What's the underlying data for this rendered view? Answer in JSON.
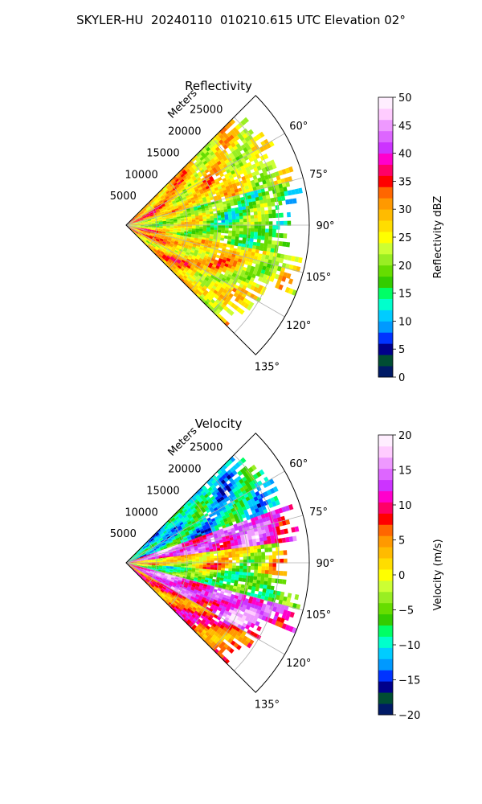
{
  "title": "SKYLER-HU  20240110  010210.615 UTC Elevation 02°",
  "chart_data": [
    {
      "type": "heatmap",
      "projection": "polar-sector",
      "title": "Reflectivity",
      "radial_label": "Meters",
      "radial_ticks": [
        5000,
        10000,
        15000,
        20000,
        25000
      ],
      "radial_tick_labels": [
        "5000",
        "10000",
        "15000",
        "20000",
        "25000"
      ],
      "theta_ticks_deg": [
        60,
        75,
        90,
        105,
        120,
        135
      ],
      "theta_tick_labels": [
        "60°",
        "75°",
        "90°",
        "105°",
        "120°",
        "135°"
      ],
      "theta_range_deg": [
        45,
        135
      ],
      "r_range_m": [
        0,
        30000
      ],
      "grid": true,
      "colorbar": {
        "label": "Reflectivity dBZ",
        "range": [
          0,
          50
        ],
        "ticks": [
          0,
          5,
          10,
          15,
          20,
          25,
          30,
          35,
          40,
          45,
          50
        ],
        "tick_labels": [
          "0",
          "5",
          "10",
          "15",
          "20",
          "25",
          "30",
          "35",
          "40",
          "45",
          "50"
        ],
        "colors": [
          "#001a66",
          "#004d33",
          "#00008b",
          "#0033ff",
          "#0099ff",
          "#00ccff",
          "#00ffcc",
          "#00ff66",
          "#33cc00",
          "#66dd00",
          "#99ee22",
          "#ccff33",
          "#ffff00",
          "#ffdd00",
          "#ffbb00",
          "#ff9900",
          "#ff6600",
          "#ff0000",
          "#ff0066",
          "#ff00cc",
          "#cc33ff",
          "#dd66ff",
          "#ee99ff",
          "#ffccff",
          "#ffeeff"
        ]
      },
      "echo_pattern": "reflectivity"
    },
    {
      "type": "heatmap",
      "projection": "polar-sector",
      "title": "Velocity",
      "radial_label": "Meters",
      "radial_ticks": [
        5000,
        10000,
        15000,
        20000,
        25000
      ],
      "radial_tick_labels": [
        "5000",
        "10000",
        "15000",
        "20000",
        "25000"
      ],
      "theta_ticks_deg": [
        60,
        75,
        90,
        105,
        120,
        135
      ],
      "theta_tick_labels": [
        "60°",
        "75°",
        "90°",
        "105°",
        "120°",
        "135°"
      ],
      "theta_range_deg": [
        45,
        135
      ],
      "r_range_m": [
        0,
        30000
      ],
      "grid": true,
      "colorbar": {
        "label": "Velocity (m/s)",
        "range": [
          -20,
          20
        ],
        "ticks": [
          -20,
          -15,
          -10,
          -5,
          0,
          5,
          10,
          15,
          20
        ],
        "tick_labels": [
          "−20",
          "−15",
          "−10",
          "−5",
          "0",
          "5",
          "10",
          "15",
          "20"
        ],
        "colors": [
          "#001a66",
          "#004d33",
          "#00008b",
          "#0033ff",
          "#0099ff",
          "#00ccff",
          "#00ffcc",
          "#00ff66",
          "#33cc00",
          "#66dd00",
          "#99ee22",
          "#ccff33",
          "#ffff00",
          "#ffdd00",
          "#ffbb00",
          "#ff9900",
          "#ff6600",
          "#ff0000",
          "#ff0066",
          "#ff00cc",
          "#cc33ff",
          "#dd66ff",
          "#ee99ff",
          "#ffccff",
          "#ffeeff"
        ]
      },
      "echo_pattern": "velocity"
    }
  ]
}
